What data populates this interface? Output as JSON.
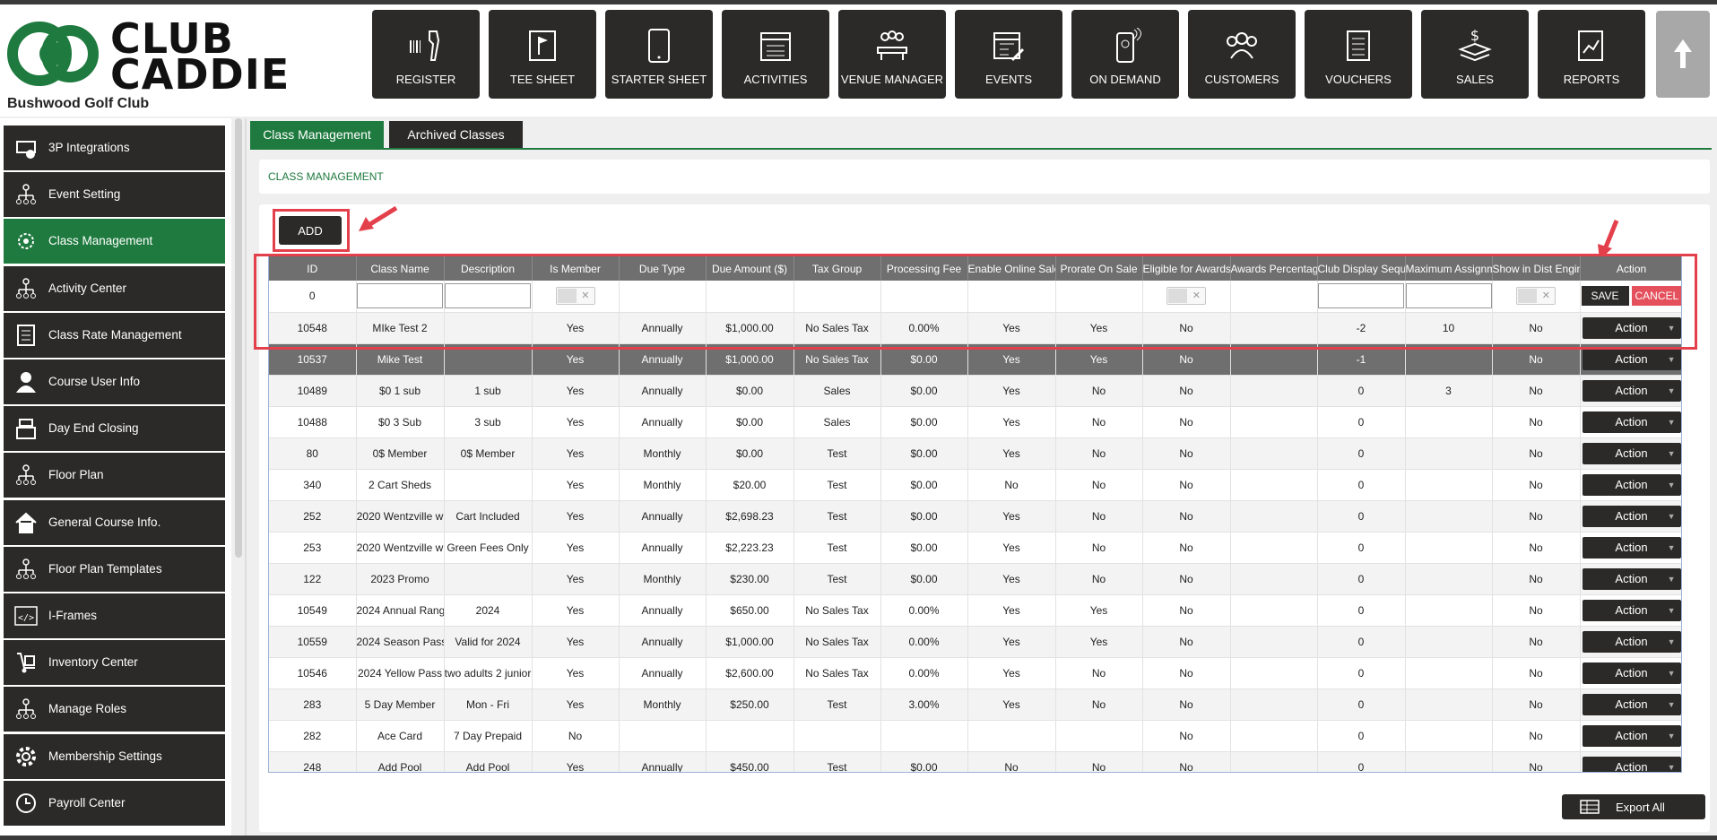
{
  "brand": {
    "logo_text_1": "CLUB",
    "logo_text_2": "CADDIE",
    "club_name": "Bushwood Golf Club",
    "accent": "#1e7a3e",
    "dark": "#2b2a28",
    "highlight": "#e4404c"
  },
  "nav": [
    {
      "label": "REGISTER",
      "icon": "barcode-scanner-icon"
    },
    {
      "label": "TEE SHEET",
      "icon": "flag-icon"
    },
    {
      "label": "STARTER SHEET",
      "icon": "tablet-icon"
    },
    {
      "label": "ACTIVITIES",
      "icon": "calendar-list-icon"
    },
    {
      "label": "VENUE MANAGER",
      "icon": "meeting-icon"
    },
    {
      "label": "EVENTS",
      "icon": "calendar-edit-icon"
    },
    {
      "label": "ON DEMAND",
      "icon": "mobile-icon"
    },
    {
      "label": "CUSTOMERS",
      "icon": "users-icon"
    },
    {
      "label": "VOUCHERS",
      "icon": "voucher-icon"
    },
    {
      "label": "SALES",
      "icon": "money-icon"
    },
    {
      "label": "REPORTS",
      "icon": "report-icon"
    }
  ],
  "sidebar": [
    {
      "label": "3P Integrations",
      "icon": "integration-icon"
    },
    {
      "label": "Event Setting",
      "icon": "org-chart-icon"
    },
    {
      "label": "Class Management",
      "icon": "gear-users-icon",
      "active": true
    },
    {
      "label": "Activity  Center",
      "icon": "org-chart-icon"
    },
    {
      "label": "Class Rate Management",
      "icon": "checklist-icon"
    },
    {
      "label": "Course User Info",
      "icon": "user-icon"
    },
    {
      "label": "Day End Closing",
      "icon": "cash-register-icon"
    },
    {
      "label": "Floor Plan",
      "icon": "org-chart-icon"
    },
    {
      "label": "General Course Info.",
      "icon": "home-icon"
    },
    {
      "label": "Floor Plan Templates",
      "icon": "org-chart-icon"
    },
    {
      "label": "I-Frames",
      "icon": "code-icon"
    },
    {
      "label": "Inventory Center",
      "icon": "dolly-icon"
    },
    {
      "label": "Manage Roles",
      "icon": "org-chart-icon"
    },
    {
      "label": "Membership Settings",
      "icon": "gear-icon"
    },
    {
      "label": "Payroll Center",
      "icon": "clock-icon"
    }
  ],
  "tabs": {
    "active": "Class Management",
    "inactive": "Archived Classes"
  },
  "section_title": "CLASS MANAGEMENT",
  "add_label": "ADD",
  "columns": [
    "ID",
    "Class Name",
    "Description",
    "Is Member",
    "Due Type",
    "Due Amount ($)",
    "Tax Group",
    "Processing Fee",
    "Enable Online Sale",
    "Prorate On Sale",
    "Eligible for Awards",
    "Awards Percentage",
    "Club Display Sequence",
    "Maximum Assignment",
    "Show in Dist Engine",
    "Action"
  ],
  "new_row": {
    "id": "0",
    "save": "SAVE",
    "cancel": "CANCEL"
  },
  "rows": [
    [
      "10548",
      "MIke Test 2",
      "",
      "Yes",
      "Annually",
      "$1,000.00",
      "No Sales Tax",
      "0.00%",
      "Yes",
      "Yes",
      "No",
      "",
      "-2",
      "10",
      "No",
      "Action"
    ],
    [
      "10537",
      "Mike Test",
      "",
      "Yes",
      "Annually",
      "$1,000.00",
      "No Sales Tax",
      "$0.00",
      "Yes",
      "Yes",
      "No",
      "",
      "-1",
      "",
      "No",
      "Action"
    ],
    [
      "10489",
      "$0 1 sub",
      "1 sub",
      "Yes",
      "Annually",
      "$0.00",
      "Sales",
      "$0.00",
      "Yes",
      "No",
      "No",
      "",
      "0",
      "3",
      "No",
      "Action"
    ],
    [
      "10488",
      "$0 3 Sub",
      "3 sub",
      "Yes",
      "Annually",
      "$0.00",
      "Sales",
      "$0.00",
      "Yes",
      "No",
      "No",
      "",
      "0",
      "",
      "No",
      "Action"
    ],
    [
      "80",
      "0$ Member",
      "0$ Member",
      "Yes",
      "Monthly",
      "$0.00",
      "Test",
      "$0.00",
      "Yes",
      "No",
      "No",
      "",
      "0",
      "",
      "No",
      "Action"
    ],
    [
      "340",
      "2 Cart Sheds",
      "",
      "Yes",
      "Monthly",
      "$20.00",
      "Test",
      "$0.00",
      "No",
      "No",
      "No",
      "",
      "0",
      "",
      "No",
      "Action"
    ],
    [
      "252",
      "2020 Wentzville w",
      "Cart Included",
      "Yes",
      "Annually",
      "$2,698.23",
      "Test",
      "$0.00",
      "Yes",
      "No",
      "No",
      "",
      "0",
      "",
      "No",
      "Action"
    ],
    [
      "253",
      "2020 Wentzville w",
      "Green Fees Only",
      "Yes",
      "Annually",
      "$2,223.23",
      "Test",
      "$0.00",
      "Yes",
      "No",
      "No",
      "",
      "0",
      "",
      "No",
      "Action"
    ],
    [
      "122",
      "2023 Promo",
      "",
      "Yes",
      "Monthly",
      "$230.00",
      "Test",
      "$0.00",
      "Yes",
      "No",
      "No",
      "",
      "0",
      "",
      "No",
      "Action"
    ],
    [
      "10549",
      "2024 Annual Rang",
      "2024",
      "Yes",
      "Annually",
      "$650.00",
      "No Sales Tax",
      "0.00%",
      "Yes",
      "Yes",
      "No",
      "",
      "0",
      "",
      "No",
      "Action"
    ],
    [
      "10559",
      "2024 Season Pass",
      "Valid for 2024",
      "Yes",
      "Annually",
      "$1,000.00",
      "No Sales Tax",
      "0.00%",
      "Yes",
      "Yes",
      "No",
      "",
      "0",
      "",
      "No",
      "Action"
    ],
    [
      "10546",
      "2024 Yellow Pass",
      "two adults 2 junior",
      "Yes",
      "Annually",
      "$2,600.00",
      "No Sales Tax",
      "0.00%",
      "Yes",
      "No",
      "No",
      "",
      "0",
      "",
      "No",
      "Action"
    ],
    [
      "283",
      "5 Day Member",
      "Mon - Fri",
      "Yes",
      "Monthly",
      "$250.00",
      "Test",
      "3.00%",
      "Yes",
      "No",
      "No",
      "",
      "0",
      "",
      "No",
      "Action"
    ],
    [
      "282",
      "Ace Card",
      "7 Day Prepaid",
      "No",
      "",
      "",
      "",
      "",
      "",
      "",
      "No",
      "",
      "0",
      "",
      "No",
      "Action"
    ],
    [
      "248",
      "Add Pool",
      "Add Pool",
      "Yes",
      "Annually",
      "$450.00",
      "Test",
      "$0.00",
      "No",
      "No",
      "No",
      "",
      "0",
      "",
      "No",
      "Action"
    ]
  ],
  "export_label": "Export All"
}
